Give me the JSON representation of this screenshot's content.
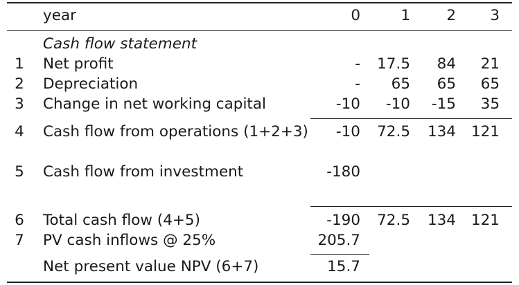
{
  "header": {
    "label": "year",
    "cols": [
      "0",
      "1",
      "2",
      "3"
    ]
  },
  "section_title": "Cash flow statement",
  "rows": [
    {
      "idx": "1",
      "label": "Net profit",
      "v": [
        "-",
        "17.5",
        "84",
        "21"
      ]
    },
    {
      "idx": "2",
      "label": "Depreciation",
      "v": [
        "-",
        "65",
        "65",
        "65"
      ]
    },
    {
      "idx": "3",
      "label": "Change in net working capital",
      "v": [
        "-10",
        "-10",
        "-15",
        "35"
      ]
    },
    {
      "idx": "4",
      "label": "Cash flow from operations (1+2+3)",
      "v": [
        "-10",
        "72.5",
        "134",
        "121"
      ]
    },
    {
      "idx": "5",
      "label": "Cash flow from investment",
      "v": [
        "-180",
        "",
        "",
        ""
      ]
    },
    {
      "idx": "6",
      "label": "Total cash flow (4+5)",
      "v": [
        "-190",
        "72.5",
        "134",
        "121"
      ]
    },
    {
      "idx": "7",
      "label": "PV cash inflows @ 25%",
      "v": [
        "205.7",
        "",
        "",
        ""
      ]
    },
    {
      "idx": "",
      "label": "Net present value NPV (6+7)",
      "v": [
        "15.7",
        "",
        "",
        ""
      ]
    }
  ]
}
